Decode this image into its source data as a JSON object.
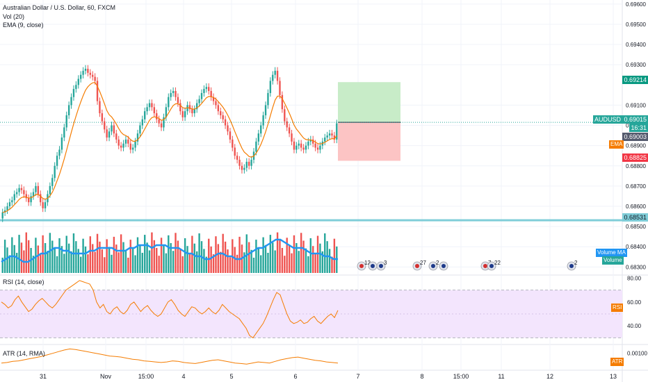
{
  "legend": {
    "title": "Australian Dollar / U.S. Dollar, 60, FXCM",
    "volume": "Vol (20)",
    "ema": "EMA (9, close)",
    "rsi": "RSI (14, close)",
    "atr": "ATR (14, RMA)"
  },
  "price_axis": {
    "ticks": [
      "0.69600",
      "0.69500",
      "0.69400",
      "0.69300",
      "0.69100",
      "0.69000",
      "0.68900",
      "0.68800",
      "0.68700",
      "0.68600",
      "0.68500",
      "0.68400",
      "0.68300"
    ],
    "target": "0.69214",
    "current_symbol": "AUDUSD",
    "current": "0.69015",
    "countdown": "16:31",
    "ema_price": "0.69003",
    "ema_label": "EMA",
    "stop": "0.68825",
    "support": "0.68531",
    "volume_ma_label": "Volume MA",
    "volume_label": "Volume"
  },
  "rsi_axis": {
    "ticks": [
      "80.00",
      "60.00",
      "40.00"
    ],
    "tag": "RSI"
  },
  "atr_axis": {
    "ticks": [
      "0.00100"
    ],
    "tag": "ATR"
  },
  "time_axis": {
    "labels": [
      "31",
      "Nov",
      "15:00",
      "4",
      "5",
      "6",
      "7",
      "8",
      "15:00",
      "11",
      "12",
      "13"
    ]
  },
  "events": {
    "labels": [
      "12",
      "3",
      "27",
      "2",
      "7",
      "22",
      "2"
    ]
  },
  "colors": {
    "up": "#26a69a",
    "down": "#ef5350",
    "ema": "#f57c00",
    "volume_ma": "#2196f3",
    "rsi": "#f57c00",
    "rsi_band": "#f3e5fd",
    "support": "#7fcdd8",
    "target_zone": "#c8ecc8",
    "stop_zone": "#fcc4c4"
  },
  "chart_data": {
    "type": "candlestick",
    "symbol": "AUDUSD",
    "interval": "60",
    "series_close": [
      0.6857,
      0.6858,
      0.686,
      0.6862,
      0.6863,
      0.6866,
      0.6867,
      0.6869,
      0.6868,
      0.6866,
      0.6864,
      0.6862,
      0.6865,
      0.6867,
      0.687,
      0.6866,
      0.6862,
      0.6859,
      0.6862,
      0.6866,
      0.687,
      0.6874,
      0.688,
      0.6885,
      0.6888,
      0.6894,
      0.6899,
      0.6905,
      0.691,
      0.6914,
      0.6918,
      0.692,
      0.6923,
      0.6925,
      0.6927,
      0.6928,
      0.6926,
      0.6925,
      0.6924,
      0.6922,
      0.6912,
      0.6906,
      0.6902,
      0.6898,
      0.6894,
      0.6897,
      0.69,
      0.6896,
      0.6893,
      0.689,
      0.6889,
      0.6891,
      0.6893,
      0.6891,
      0.6888,
      0.6889,
      0.6892,
      0.6896,
      0.69,
      0.6903,
      0.6907,
      0.6909,
      0.6911,
      0.6909,
      0.6906,
      0.6903,
      0.6901,
      0.6899,
      0.6904,
      0.6909,
      0.6914,
      0.6916,
      0.6917,
      0.6914,
      0.6911,
      0.6907,
      0.6904,
      0.6907,
      0.691,
      0.6908,
      0.6906,
      0.6908,
      0.6911,
      0.6913,
      0.6916,
      0.6918,
      0.6919,
      0.6917,
      0.6914,
      0.6912,
      0.691,
      0.6907,
      0.6905,
      0.6903,
      0.69,
      0.6897,
      0.6893,
      0.6889,
      0.6885,
      0.6883,
      0.688,
      0.6878,
      0.6879,
      0.6882,
      0.688,
      0.6883,
      0.6887,
      0.6892,
      0.6896,
      0.69,
      0.6905,
      0.691,
      0.6916,
      0.6922,
      0.6925,
      0.6927,
      0.6922,
      0.6915,
      0.6908,
      0.6902,
      0.6899,
      0.6896,
      0.6892,
      0.6888,
      0.689,
      0.6891,
      0.6889,
      0.6888,
      0.689,
      0.6892,
      0.6893,
      0.6891,
      0.6889,
      0.6888,
      0.689,
      0.6892,
      0.6894,
      0.6895,
      0.6896,
      0.6895,
      0.6893,
      0.6901
    ],
    "volume_ma": [
      0.34,
      0.35,
      0.36,
      0.36,
      0.35,
      0.34,
      0.34,
      0.35,
      0.36,
      0.37,
      0.37,
      0.38,
      0.39,
      0.39,
      0.38,
      0.38,
      0.37,
      0.37,
      0.37,
      0.37,
      0.38,
      0.38,
      0.39,
      0.39,
      0.39,
      0.39,
      0.38,
      0.38,
      0.38,
      0.39,
      0.39,
      0.4,
      0.4,
      0.4,
      0.39,
      0.4,
      0.4,
      0.4,
      0.39,
      0.39,
      0.39,
      0.38,
      0.37,
      0.37,
      0.36,
      0.36,
      0.35,
      0.35,
      0.36,
      0.37,
      0.37,
      0.36,
      0.36,
      0.35,
      0.35,
      0.36,
      0.37,
      0.38,
      0.39,
      0.39,
      0.4,
      0.41,
      0.42,
      0.42,
      0.41,
      0.4,
      0.39,
      0.39,
      0.39,
      0.38,
      0.37,
      0.37,
      0.37,
      0.36,
      0.36,
      0.35,
      0.35
    ],
    "rsi": [
      60,
      58,
      55,
      57,
      62,
      65,
      60,
      56,
      52,
      54,
      58,
      61,
      63,
      60,
      57,
      55,
      58,
      62,
      66,
      70,
      72,
      74,
      76,
      78,
      77,
      76,
      75,
      70,
      60,
      55,
      58,
      52,
      50,
      54,
      56,
      52,
      50,
      53,
      58,
      60,
      56,
      52,
      55,
      57,
      53,
      50,
      48,
      50,
      55,
      60,
      62,
      58,
      53,
      50,
      48,
      52,
      56,
      55,
      52,
      50,
      52,
      55,
      52,
      50,
      53,
      58,
      55,
      52,
      50,
      48,
      46,
      42,
      38,
      32,
      30,
      34,
      38,
      42,
      48,
      55,
      62,
      68,
      66,
      58,
      50,
      44,
      42,
      43,
      45,
      42,
      43,
      46,
      48,
      44,
      42,
      45,
      48,
      50,
      47,
      53
    ],
    "atr": [
      0.00082,
      0.00083,
      0.00085,
      0.00086,
      0.00088,
      0.0009,
      0.00092,
      0.00094,
      0.00097,
      0.001,
      0.00103,
      0.00106,
      0.00108,
      0.00107,
      0.00105,
      0.00103,
      0.00101,
      0.00099,
      0.00097,
      0.00095,
      0.00094,
      0.00093,
      0.00091,
      0.00089,
      0.00088,
      0.00086,
      0.00085,
      0.00084,
      0.00083,
      0.00084,
      0.00086,
      0.00085,
      0.00083,
      0.00082,
      0.00081,
      0.00083,
      0.00085,
      0.00087,
      0.00088,
      0.00086,
      0.00084,
      0.00082,
      0.00081,
      0.0008,
      0.00082,
      0.00084,
      0.00083,
      0.00082,
      0.00085,
      0.00088,
      0.0009,
      0.00092,
      0.00093,
      0.00091,
      0.00089,
      0.00087,
      0.00086,
      0.00084,
      0.00083,
      0.00082
    ],
    "y_range": [
      0.6826,
      0.6962
    ],
    "rsi_range": [
      25,
      82
    ],
    "rsi_bands": [
      70,
      30
    ],
    "atr_range": [
      0.0007,
      0.00115
    ],
    "position": {
      "entry": 0.69015,
      "target": 0.69214,
      "stop": 0.68825
    },
    "support_level": 0.68531
  }
}
